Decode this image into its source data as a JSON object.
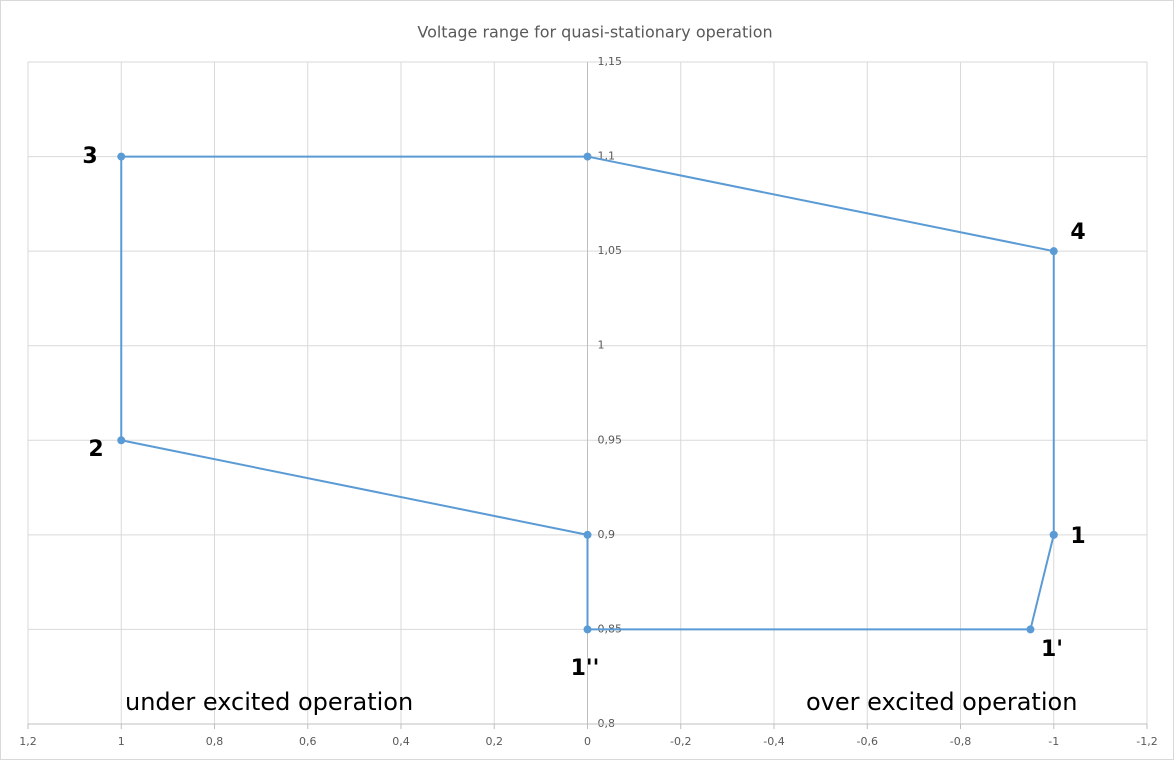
{
  "chart_data": {
    "type": "line",
    "title": "Voltage range for quasi-stationary operation",
    "x": [
      -1,
      -1,
      0,
      1,
      1,
      0,
      0,
      -0.95,
      -1
    ],
    "series": [
      {
        "color": "#5b9bd5",
        "values": [
          0.9,
          1.05,
          1.1,
          1.1,
          0.95,
          0.9,
          0.85,
          0.85,
          0.9
        ]
      }
    ],
    "xlim": [
      1.2,
      -1.2
    ],
    "xticks": [
      {
        "value": 1.2,
        "label": "1,2"
      },
      1,
      {
        "value": 0.8,
        "label": "0,8"
      },
      {
        "value": 0.6,
        "label": "0,6"
      },
      {
        "value": 0.4,
        "label": "0,4"
      },
      {
        "value": 0.2,
        "label": "0,2"
      },
      0,
      {
        "value": -0.2,
        "label": "-0,2"
      },
      {
        "value": -0.4,
        "label": "-0,4"
      },
      {
        "value": -0.6,
        "label": "-0,6"
      },
      {
        "value": -0.8,
        "label": "-0,8"
      },
      -1,
      {
        "value": -1.2,
        "label": "-1,2"
      }
    ],
    "ylim": [
      0.8,
      1.15
    ],
    "yticks": [
      {
        "value": 0.8,
        "label": "0,8"
      },
      {
        "value": 0.85,
        "label": "0,85"
      },
      {
        "value": 0.9,
        "label": "0,9"
      },
      {
        "value": 0.95,
        "label": "0,95"
      },
      1,
      {
        "value": 1.05,
        "label": "1,05"
      },
      {
        "value": 1.1,
        "label": "1,1"
      },
      {
        "value": 1.15,
        "label": "1,15"
      }
    ],
    "grid": true,
    "annotations": [
      "3",
      "4",
      "2",
      "1",
      "1''",
      "1'",
      "under excited operation",
      "over excited operation"
    ]
  }
}
